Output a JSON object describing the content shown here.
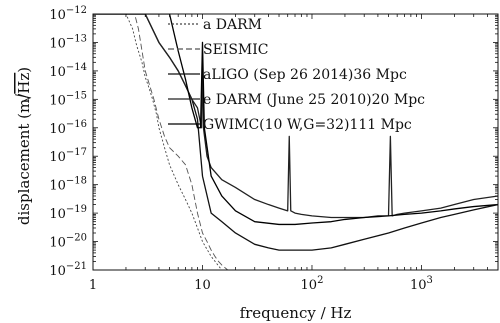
{
  "chart_data": {
    "type": "line",
    "title": "",
    "xlabel": "frequency / Hz",
    "ylabel": "displacement (m/√Hz)",
    "ylabel_parts": {
      "lead": "displacement (m/",
      "radical": "Hz",
      "tail": ")"
    },
    "xscale": "log",
    "yscale": "log",
    "xlim": [
      1,
      5000
    ],
    "ylim": [
      1e-21,
      1e-12
    ],
    "x_ticks": [
      {
        "value": 1,
        "label": "1"
      },
      {
        "value": 10,
        "label": "10"
      },
      {
        "value": 100,
        "label": "10",
        "exp": "2"
      },
      {
        "value": 1000,
        "label": "10",
        "exp": "3"
      }
    ],
    "y_ticks": [
      {
        "value": 1e-12,
        "label": "10",
        "exp": "−12"
      },
      {
        "value": 1e-13,
        "label": "10",
        "exp": "−13"
      },
      {
        "value": 1e-14,
        "label": "10",
        "exp": "−14"
      },
      {
        "value": 1e-15,
        "label": "10",
        "exp": "−15"
      },
      {
        "value": 1e-16,
        "label": "10",
        "exp": "−16"
      },
      {
        "value": 1e-17,
        "label": "10",
        "exp": "−17"
      },
      {
        "value": 1e-18,
        "label": "10",
        "exp": "−18"
      },
      {
        "value": 1e-19,
        "label": "10",
        "exp": "−19"
      },
      {
        "value": 1e-20,
        "label": "10",
        "exp": "−20"
      },
      {
        "value": 1e-21,
        "label": "10",
        "exp": "−21"
      }
    ],
    "legend_position": "top-left",
    "series": [
      {
        "name": "a DARM",
        "color": "#444444",
        "dash": "2,2",
        "x": [
          1,
          2,
          2.3,
          2.5,
          2.8,
          3,
          3.2,
          3.5,
          3.8,
          4,
          4.5,
          5,
          6,
          7,
          8,
          9,
          10,
          12,
          15,
          20,
          30,
          40,
          50,
          70,
          100,
          150,
          200,
          300,
          500,
          700,
          1000,
          1500,
          2000,
          3000,
          5000
        ],
        "y": [
          1e-12,
          1e-12,
          3e-13,
          8e-14,
          2e-14,
          6e-15,
          3e-15,
          1e-15,
          3e-16,
          1e-16,
          2e-17,
          5e-18,
          1e-18,
          3e-19,
          1e-19,
          3e-20,
          1e-20,
          3e-21,
          1e-21,
          1e-21,
          1e-21,
          1e-21,
          1e-21,
          1e-21,
          1e-21,
          1e-21,
          1e-21,
          1e-21,
          1e-21,
          1e-21,
          1e-21,
          1e-21,
          1e-21,
          1e-21,
          1e-21
        ]
      },
      {
        "name": "SEISMIC",
        "color": "#555555",
        "dash": "6,3",
        "x": [
          1,
          2.4,
          2.6,
          3,
          3.3,
          3.6,
          4,
          4.5,
          5,
          6,
          7,
          8,
          9,
          10,
          11,
          12,
          13,
          14,
          15,
          17,
          20
        ],
        "y": [
          1e-12,
          1e-12,
          3e-13,
          1e-14,
          3e-15,
          1e-15,
          2e-16,
          5e-17,
          2e-17,
          1e-17,
          5e-18,
          1e-18,
          1e-19,
          2e-20,
          1e-20,
          5e-21,
          3e-21,
          2e-21,
          1.5e-21,
          1e-21,
          1e-21
        ]
      },
      {
        "name": "aLIGO (Sep 26 2014)36 Mpc",
        "color": "#111111",
        "dash": "",
        "x": [
          1,
          2,
          3,
          4,
          5,
          6,
          7,
          8,
          9,
          10,
          12,
          15,
          20,
          30,
          40,
          50,
          60,
          70,
          80,
          100,
          150,
          200,
          300,
          500,
          700,
          1000,
          1500,
          2000,
          3000,
          5000
        ],
        "y": [
          1e-12,
          1e-12,
          1e-12,
          1e-13,
          3e-14,
          1e-14,
          3e-15,
          1e-15,
          2e-16,
          2e-18,
          1e-19,
          5e-20,
          2e-20,
          8e-21,
          6e-21,
          5e-21,
          5e-21,
          5e-21,
          5e-21,
          5e-21,
          6e-21,
          8e-21,
          1.2e-20,
          2e-20,
          3e-20,
          4.5e-20,
          7e-20,
          9e-20,
          1.3e-19,
          2e-19
        ]
      },
      {
        "name": "e DARM (June 25 2010)20 Mpc",
        "color": "#222222",
        "dash": "",
        "x": [
          1,
          3,
          4,
          5,
          6,
          7,
          8,
          9,
          9.8,
          10,
          10.2,
          11,
          12,
          15,
          20,
          30,
          40,
          50,
          60,
          62,
          64,
          70,
          80,
          100,
          150,
          200,
          300,
          400,
          500,
          520,
          540,
          600,
          700,
          1000,
          1500,
          2000,
          3000,
          5000
        ],
        "y": [
          1e-12,
          1e-12,
          1e-13,
          3e-14,
          1e-14,
          3e-15,
          1e-15,
          5e-16,
          1e-16,
          3e-14,
          1e-16,
          1e-17,
          4e-18,
          1.5e-18,
          8e-19,
          3e-19,
          2e-19,
          1.5e-19,
          1.2e-19,
          5e-17,
          1.2e-19,
          1e-19,
          9e-20,
          8e-20,
          7e-20,
          7e-20,
          7e-20,
          8e-20,
          8e-20,
          5e-17,
          8e-20,
          9e-20,
          1e-19,
          1.2e-19,
          1.5e-19,
          2e-19,
          3e-19,
          4e-19
        ]
      },
      {
        "name": "GWIMC(10 W,G=32)111 Mpc",
        "color": "#000000",
        "dash": "",
        "x": [
          1,
          5,
          6,
          7,
          8,
          9,
          9.6,
          10,
          10.4,
          12,
          15,
          20,
          30,
          50,
          70,
          100,
          150,
          200,
          300,
          500,
          700,
          1000,
          1500,
          2000,
          3000,
          5000
        ],
        "y": [
          1e-12,
          1e-12,
          5e-14,
          5e-15,
          5e-16,
          1e-16,
          1e-16,
          1e-13,
          1e-16,
          2e-18,
          4e-19,
          1.2e-19,
          5e-20,
          4e-20,
          4e-20,
          4.5e-20,
          5e-20,
          6e-20,
          7e-20,
          8e-20,
          9e-20,
          1e-19,
          1.2e-19,
          1.4e-19,
          1.7e-19,
          2e-19
        ]
      }
    ]
  }
}
